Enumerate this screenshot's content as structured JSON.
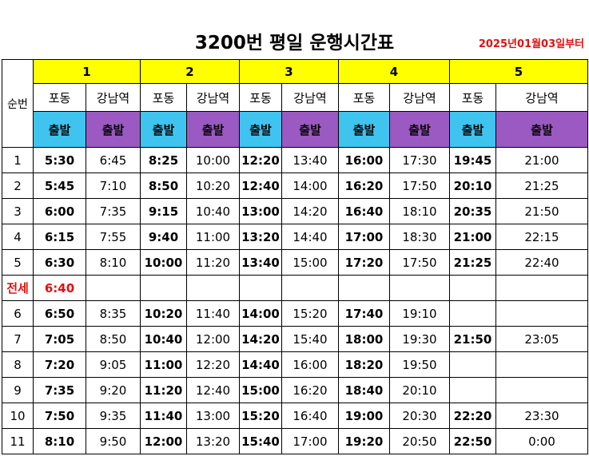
{
  "title": "3200번 평일 운행시간표",
  "start_date": "2025년01월03일부터",
  "seq_header": "순번",
  "groups": [
    "1",
    "2",
    "3",
    "4",
    "5"
  ],
  "stop_from": "포동",
  "stop_to": "강남역",
  "direction": "출발",
  "rows": [
    {
      "n": "1",
      "t": [
        [
          "5:30",
          "6:45"
        ],
        [
          "8:25",
          "10:00"
        ],
        [
          "12:20",
          "13:40"
        ],
        [
          "16:00",
          "17:30"
        ],
        [
          "19:45",
          "21:00"
        ]
      ]
    },
    {
      "n": "2",
      "t": [
        [
          "5:45",
          "7:10"
        ],
        [
          "8:50",
          "10:20"
        ],
        [
          "12:40",
          "14:00"
        ],
        [
          "16:20",
          "17:50"
        ],
        [
          "20:10",
          "21:25"
        ]
      ]
    },
    {
      "n": "3",
      "t": [
        [
          "6:00",
          "7:35"
        ],
        [
          "9:15",
          "10:40"
        ],
        [
          "13:00",
          "14:20"
        ],
        [
          "16:40",
          "18:10"
        ],
        [
          "20:35",
          "21:50"
        ]
      ]
    },
    {
      "n": "4",
      "t": [
        [
          "6:15",
          "7:55"
        ],
        [
          "9:40",
          "11:00"
        ],
        [
          "13:20",
          "14:40"
        ],
        [
          "17:00",
          "18:30"
        ],
        [
          "21:00",
          "22:15"
        ]
      ]
    },
    {
      "n": "5",
      "t": [
        [
          "6:30",
          "8:10"
        ],
        [
          "10:00",
          "11:20"
        ],
        [
          "13:40",
          "15:00"
        ],
        [
          "17:20",
          "17:50"
        ],
        [
          "21:25",
          "22:40"
        ]
      ]
    },
    {
      "n": "전세",
      "t": [
        [
          "6:40",
          ""
        ],
        [
          "",
          ""
        ],
        [
          "",
          ""
        ],
        [
          "",
          ""
        ],
        [
          "",
          ""
        ]
      ]
    },
    {
      "n": "6",
      "t": [
        [
          "6:50",
          "8:35"
        ],
        [
          "10:20",
          "11:40"
        ],
        [
          "14:00",
          "15:20"
        ],
        [
          "17:40",
          "19:10"
        ],
        [
          "",
          ""
        ]
      ]
    },
    {
      "n": "7",
      "t": [
        [
          "7:05",
          "8:50"
        ],
        [
          "10:40",
          "12:00"
        ],
        [
          "14:20",
          "15:40"
        ],
        [
          "18:00",
          "19:30"
        ],
        [
          "21:50",
          "23:05"
        ]
      ]
    },
    {
      "n": "8",
      "t": [
        [
          "7:20",
          "9:05"
        ],
        [
          "11:00",
          "12:20"
        ],
        [
          "14:40",
          "16:00"
        ],
        [
          "18:20",
          "19:50"
        ],
        [
          "",
          ""
        ]
      ]
    },
    {
      "n": "9",
      "t": [
        [
          "7:35",
          "9:20"
        ],
        [
          "11:20",
          "12:40"
        ],
        [
          "15:00",
          "16:20"
        ],
        [
          "18:40",
          "20:10"
        ],
        [
          "",
          ""
        ]
      ]
    },
    {
      "n": "10",
      "t": [
        [
          "7:50",
          "9:35"
        ],
        [
          "11:40",
          "13:00"
        ],
        [
          "15:20",
          "16:40"
        ],
        [
          "19:00",
          "20:30"
        ],
        [
          "22:20",
          "23:30"
        ]
      ]
    },
    {
      "n": "11",
      "t": [
        [
          "8:10",
          "9:50"
        ],
        [
          "12:00",
          "13:20"
        ],
        [
          "15:40",
          "17:00"
        ],
        [
          "19:20",
          "20:50"
        ],
        [
          "22:50",
          "0:00"
        ]
      ]
    }
  ],
  "colors": {
    "group_header": "#ffff00",
    "depart_from": "#3fc4ef",
    "depart_to": "#9b59c2",
    "charter": "#e01010"
  }
}
